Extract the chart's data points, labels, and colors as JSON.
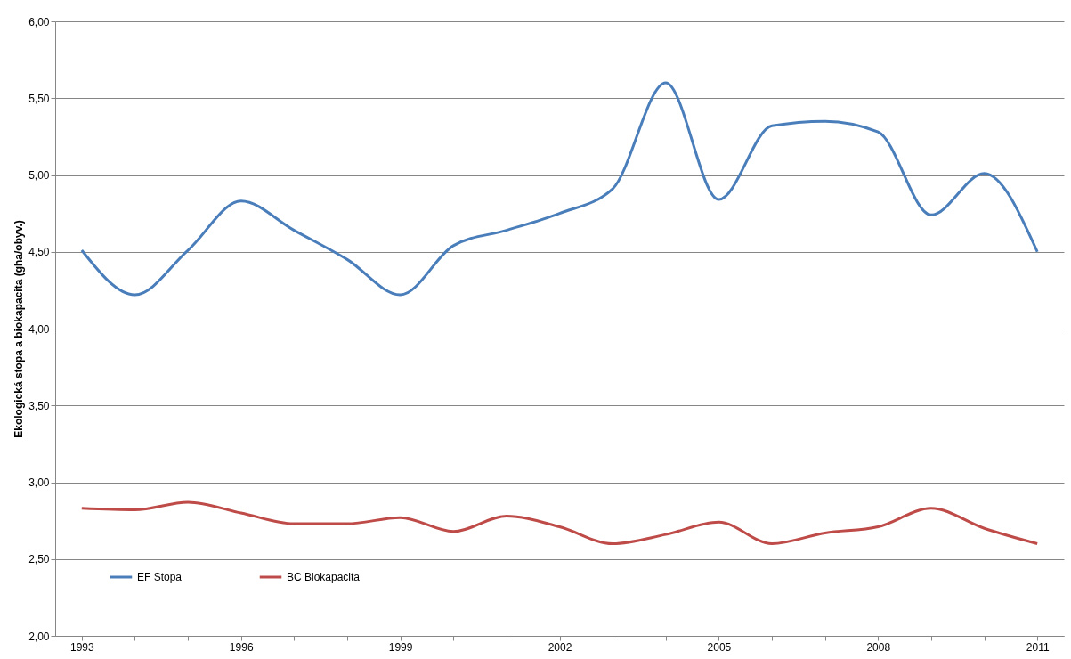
{
  "chart_data": {
    "type": "line",
    "ylabel": "Ekologická stopa a biokapacita (gha/obyv.)",
    "categories": [
      "1993",
      null,
      null,
      "1996",
      null,
      null,
      "1999",
      null,
      null,
      "2002",
      null,
      null,
      "2005",
      null,
      null,
      "2008",
      null,
      null,
      "2011"
    ],
    "series": [
      {
        "name": "EF Stopa",
        "color": "#4a7ebb",
        "values": [
          4.51,
          4.22,
          4.51,
          4.83,
          4.64,
          4.45,
          4.22,
          4.54,
          4.64,
          4.75,
          4.91,
          5.6,
          4.84,
          5.32,
          5.35,
          5.28,
          4.74,
          5.01,
          4.5
        ]
      },
      {
        "name": "BC Biokapacita",
        "color": "#be4b48",
        "values": [
          2.83,
          2.82,
          2.87,
          2.8,
          2.73,
          2.73,
          2.77,
          2.68,
          2.78,
          2.71,
          2.6,
          2.66,
          2.74,
          2.6,
          2.67,
          2.71,
          2.83,
          2.7,
          2.6
        ]
      }
    ],
    "ylim": [
      2,
      6
    ],
    "yticks": [
      {
        "value": 2,
        "label": "2,00"
      },
      {
        "value": 2.5,
        "label": "2,50"
      },
      {
        "value": 3,
        "label": "3,00"
      },
      {
        "value": 3.5,
        "label": "3,50"
      },
      {
        "value": 4,
        "label": "4,00"
      },
      {
        "value": 4.5,
        "label": "4,50"
      },
      {
        "value": 5,
        "label": "5,00"
      },
      {
        "value": 5.5,
        "label": "5,50"
      },
      {
        "value": 6,
        "label": "6,00"
      }
    ],
    "grid": "y",
    "legend": "bottom left",
    "marker": "none",
    "line_style": "solid"
  }
}
